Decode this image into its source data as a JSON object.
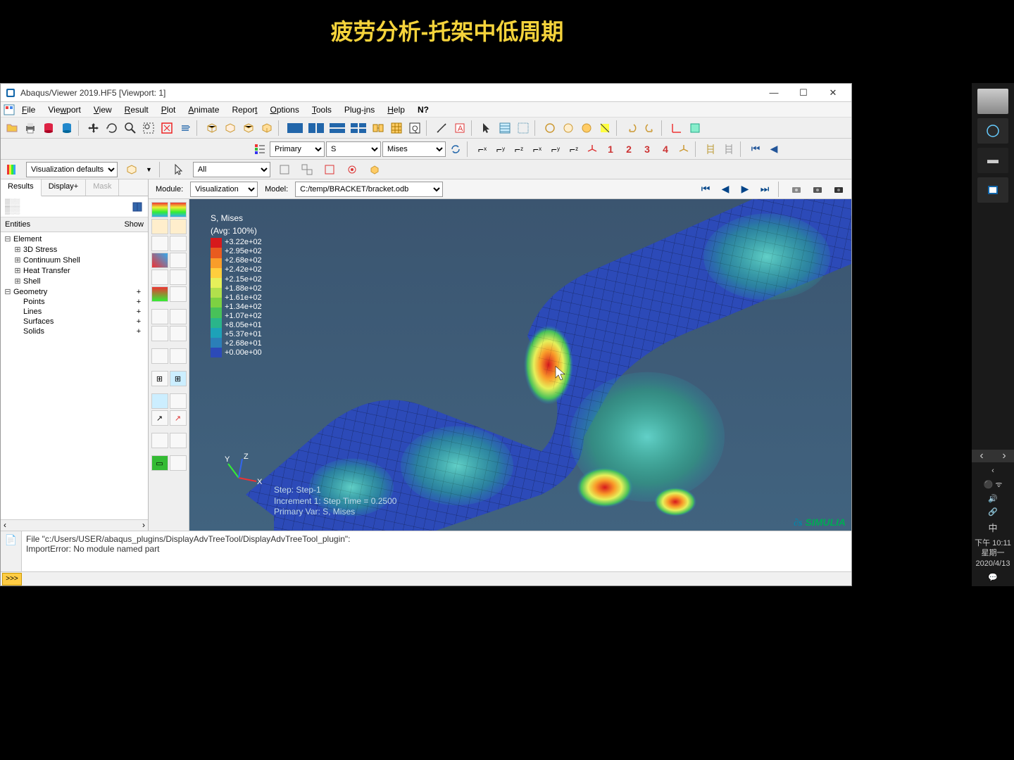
{
  "slide": {
    "title": "疲劳分析-托架中低周期",
    "title_color": "#f5d33b"
  },
  "titlebar": {
    "text": "Abaqus/Viewer 2019.HF5 [Viewport: 1]"
  },
  "menu": {
    "items": [
      "File",
      "Viewport",
      "View",
      "Result",
      "Plot",
      "Animate",
      "Report",
      "Options",
      "Tools",
      "Plug-ins",
      "Help"
    ]
  },
  "toolbar2": {
    "output_sel": "Primary",
    "var_sel": "S",
    "invariant_sel": "Mises",
    "csys_labels": [
      "1",
      "2",
      "3",
      "4"
    ]
  },
  "toolbar3": {
    "defaults": "Visualization defaults",
    "filter": "All"
  },
  "context": {
    "module_label": "Module:",
    "module_value": "Visualization",
    "model_label": "Model:",
    "model_value": "C:/temp/BRACKET/bracket.odb"
  },
  "left_tabs": {
    "t1": "Results",
    "t2": "Display+",
    "t3": "Mask"
  },
  "entities": {
    "header_left": "Entities",
    "header_right": "Show",
    "tree": [
      {
        "exp": "⊟",
        "label": "Element",
        "level": 0,
        "show": ""
      },
      {
        "exp": "⊞",
        "label": "3D Stress",
        "level": 1,
        "show": ""
      },
      {
        "exp": "⊞",
        "label": "Continuum Shell",
        "level": 1,
        "show": ""
      },
      {
        "exp": "⊞",
        "label": "Heat Transfer",
        "level": 1,
        "show": ""
      },
      {
        "exp": "⊞",
        "label": "Shell",
        "level": 1,
        "show": ""
      },
      {
        "exp": "⊟",
        "label": "Geometry",
        "level": 0,
        "show": "+"
      },
      {
        "exp": "",
        "label": "Points",
        "level": 1,
        "show": "+"
      },
      {
        "exp": "",
        "label": "Lines",
        "level": 1,
        "show": "+"
      },
      {
        "exp": "",
        "label": "Surfaces",
        "level": 1,
        "show": "+"
      },
      {
        "exp": "",
        "label": "Solids",
        "level": 1,
        "show": "+"
      }
    ]
  },
  "legend": {
    "title1": "S, Mises",
    "title2": "(Avg: 100%)",
    "values": [
      "+3.22e+02",
      "+2.95e+02",
      "+2.68e+02",
      "+2.42e+02",
      "+2.15e+02",
      "+1.88e+02",
      "+1.61e+02",
      "+1.34e+02",
      "+1.07e+02",
      "+8.05e+01",
      "+5.37e+01",
      "+2.68e+01",
      "+0.00e+00"
    ],
    "colors": [
      "#d7191c",
      "#e85b1f",
      "#f99d2a",
      "#ffce3d",
      "#e6f05a",
      "#b2e04c",
      "#7dd142",
      "#48c159",
      "#2ab58a",
      "#1da2b8",
      "#2b7fb8",
      "#2c4ab8"
    ]
  },
  "triad": {
    "x": "X",
    "y": "Y",
    "z": "Z"
  },
  "step_info": {
    "l1": "Step: Step-1",
    "l2": "Increment     1: Step Time =   0.2500",
    "l3": "Primary Var: S, Mises"
  },
  "viewport": {
    "bg_top": "#3b5570",
    "bg_bottom": "#41637f"
  },
  "brand": "SIMULIA",
  "msg": {
    "line1": "File \"c:/Users/USER/abaqus_plugins/DisplayAdvTreeTool/DisplayAdvTreeTool_plugin\":",
    "line2": "ImportError: No module named part"
  },
  "taskbar": {
    "time": "下午 10:11",
    "day": "星期一",
    "date": "2020/4/13",
    "ime": "中"
  }
}
